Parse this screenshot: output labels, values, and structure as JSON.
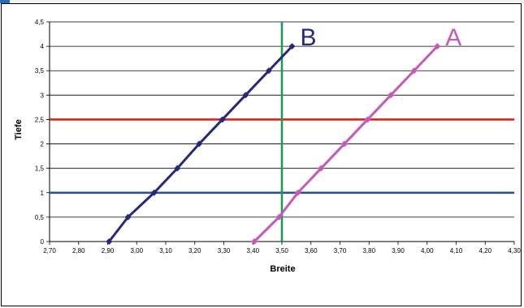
{
  "colors": {
    "series_A": "#c659b8",
    "series_B": "#26287a",
    "ref_red": "#e0201b",
    "ref_blue": "#2d4fa3",
    "ref_green": "#1f9a57",
    "grid": "#000000"
  },
  "chart_data": {
    "type": "line",
    "title": "",
    "xlabel": "Breite",
    "ylabel": "Tiefe",
    "xlim": [
      2.7,
      4.3
    ],
    "ylim": [
      0,
      4.5
    ],
    "x_ticks": [
      "2,70",
      "2,80",
      "2,90",
      "3,00",
      "3,10",
      "3,20",
      "3,30",
      "3,40",
      "3,50",
      "3,60",
      "3,70",
      "3,80",
      "3,90",
      "4,00",
      "4,10",
      "4,20",
      "4,30"
    ],
    "y_ticks": [
      "0",
      "0,5",
      "1",
      "1,5",
      "2",
      "2,5",
      "3",
      "3,5",
      "4",
      "4,5"
    ],
    "grid": "horizontal",
    "series": [
      {
        "name": "B",
        "points": [
          {
            "x": 2.905,
            "y": 0
          },
          {
            "x": 2.97,
            "y": 0.5
          },
          {
            "x": 3.06,
            "y": 1
          },
          {
            "x": 3.14,
            "y": 1.5
          },
          {
            "x": 3.215,
            "y": 2
          },
          {
            "x": 3.295,
            "y": 2.5
          },
          {
            "x": 3.375,
            "y": 3
          },
          {
            "x": 3.455,
            "y": 3.5
          },
          {
            "x": 3.535,
            "y": 4
          }
        ]
      },
      {
        "name": "A",
        "points": [
          {
            "x": 3.405,
            "y": 0
          },
          {
            "x": 3.49,
            "y": 0.5
          },
          {
            "x": 3.555,
            "y": 1
          },
          {
            "x": 3.635,
            "y": 1.5
          },
          {
            "x": 3.715,
            "y": 2
          },
          {
            "x": 3.795,
            "y": 2.5
          },
          {
            "x": 3.875,
            "y": 3
          },
          {
            "x": 3.955,
            "y": 3.5
          },
          {
            "x": 4.035,
            "y": 4
          }
        ]
      }
    ],
    "reference_lines": [
      {
        "axis": "y",
        "value": 2.5,
        "color": "#e0201b"
      },
      {
        "axis": "y",
        "value": 1,
        "color": "#2d4fa3"
      },
      {
        "axis": "x",
        "value": 3.5,
        "color": "#1f9a57"
      }
    ]
  }
}
